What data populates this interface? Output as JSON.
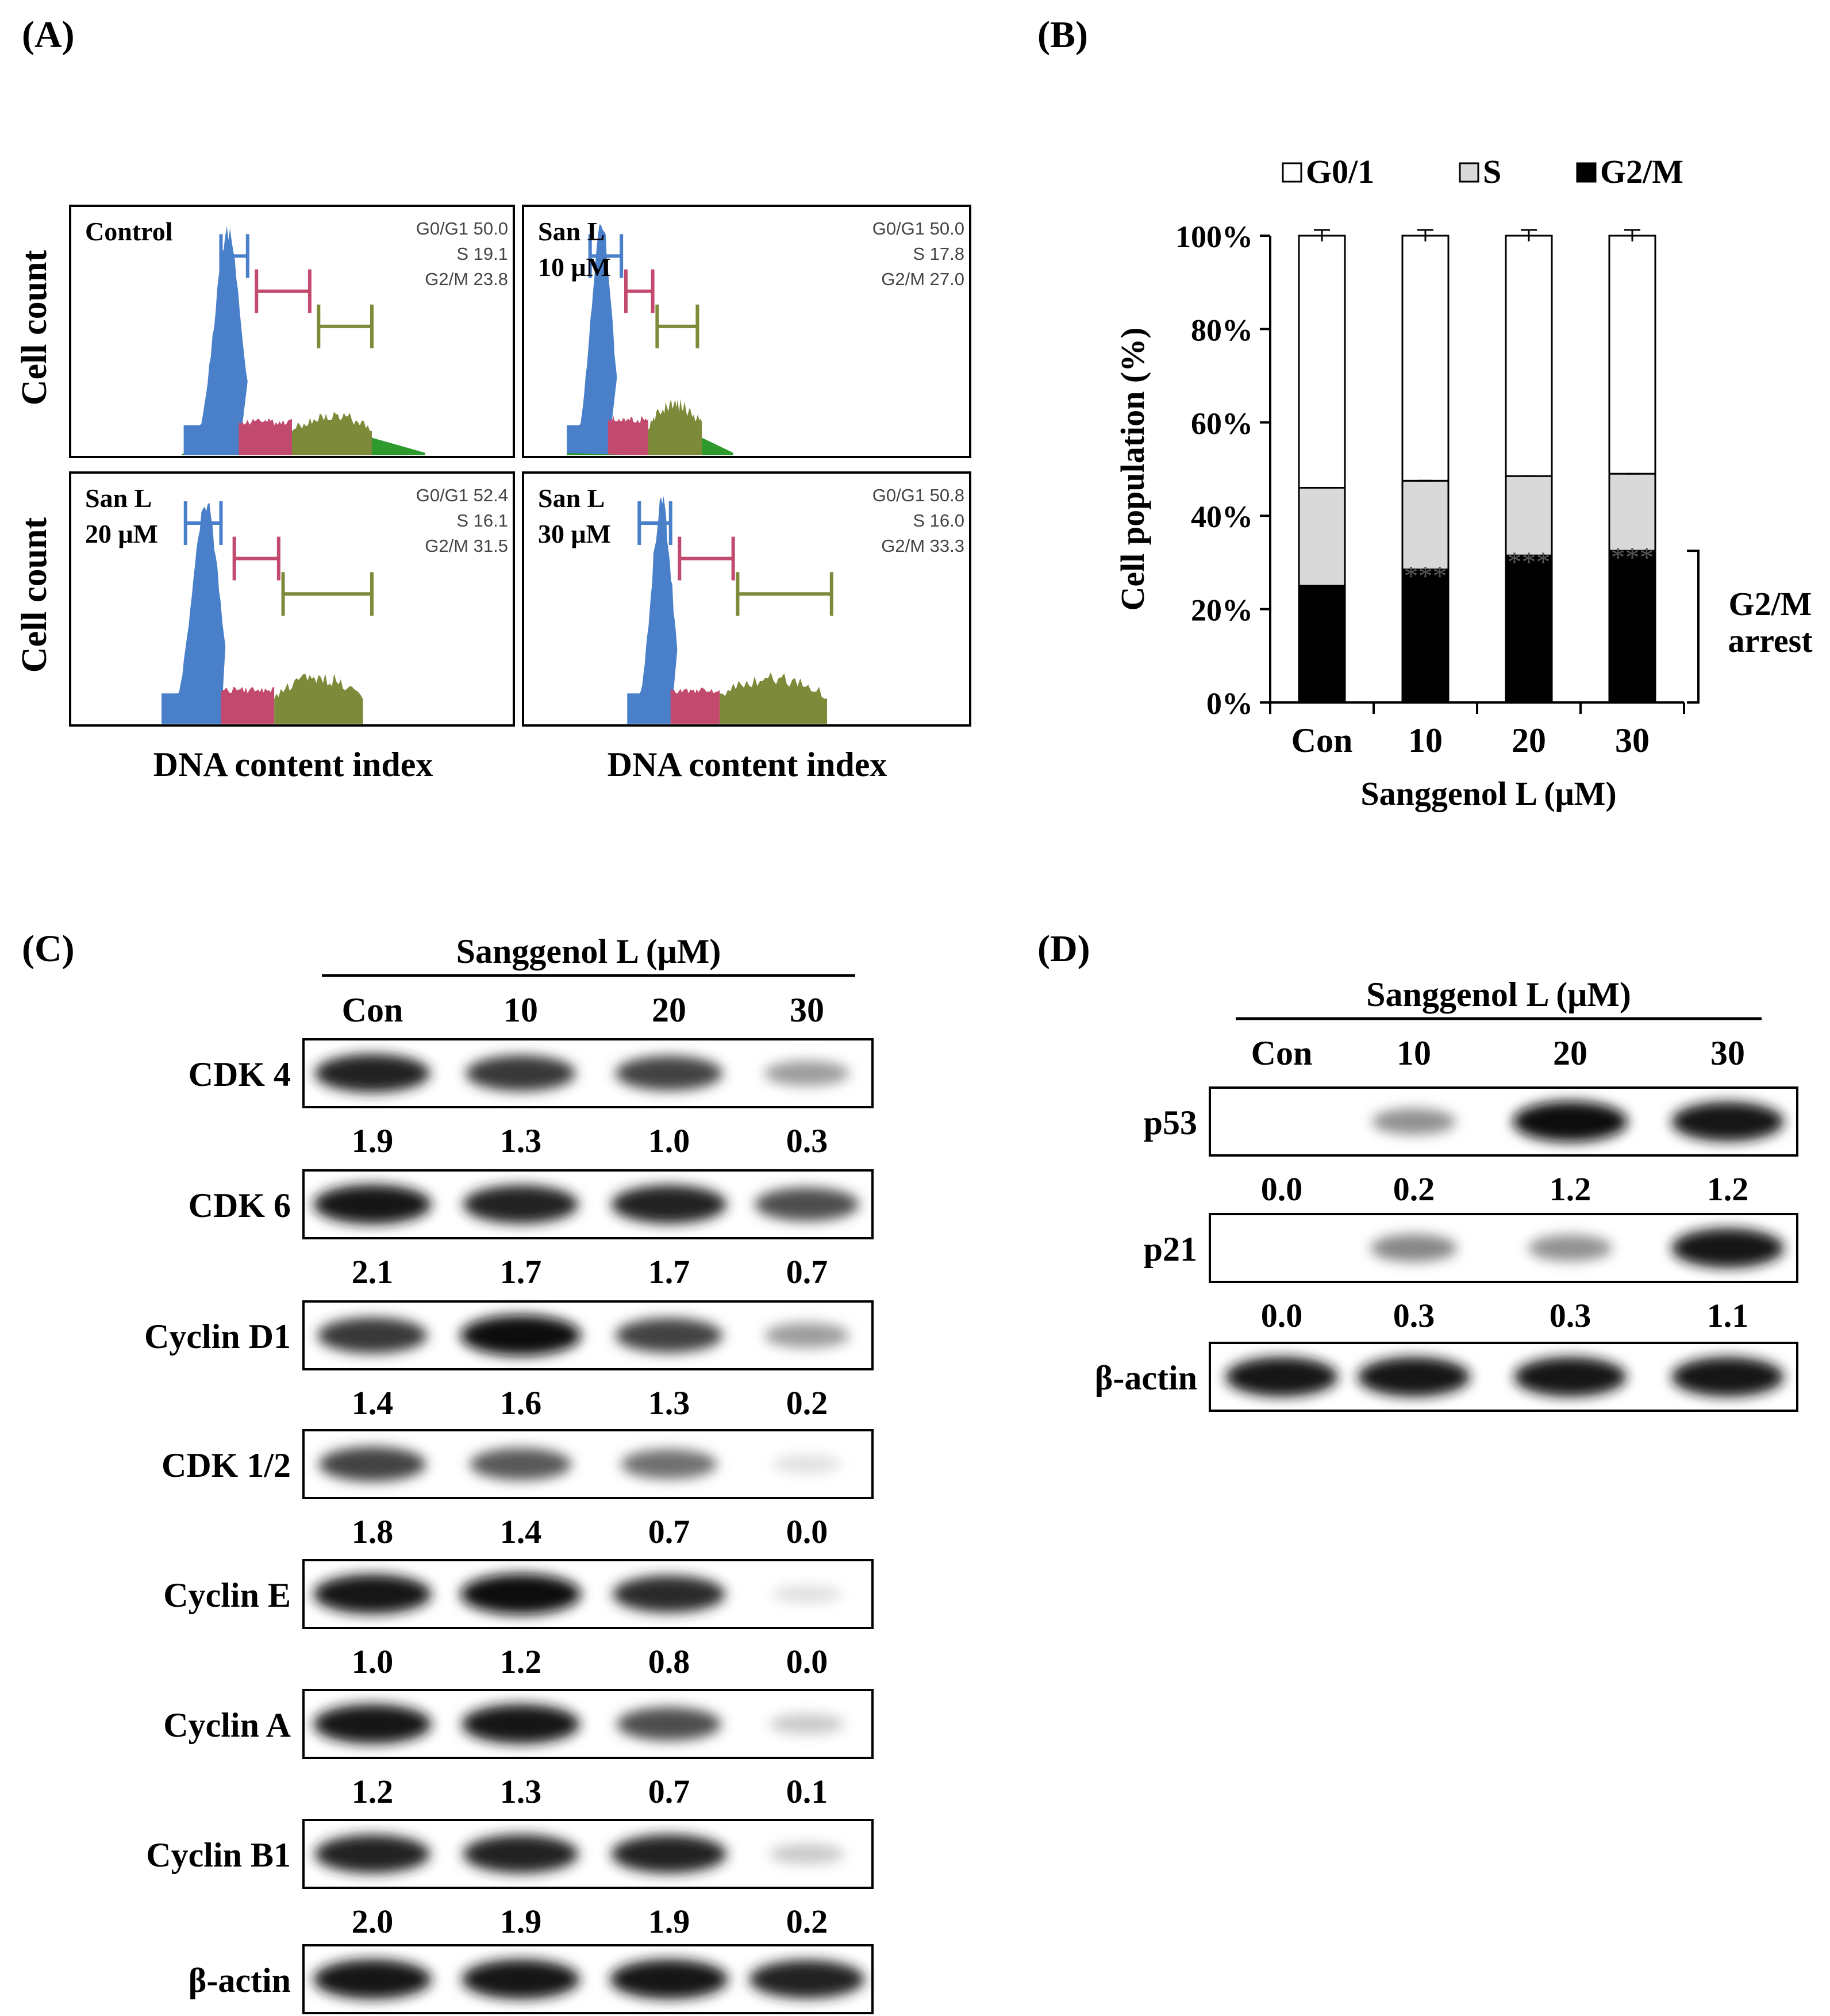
{
  "panel_labels": {
    "a": "(A)",
    "b": "(B)",
    "c": "(C)",
    "d": "(D)"
  },
  "colors": {
    "g1": "#4a7fca",
    "s": "#c24a6e",
    "g2m": "#7d8a3a",
    "tail": "#2e9a2e",
    "stack_s": "#d9d9d9",
    "stack_g2m": "#000000"
  },
  "histograms": {
    "y_label": "Cell count",
    "x_label": "DNA content index",
    "panels": [
      {
        "name": "control",
        "title": [
          "Control"
        ],
        "stats": [
          "G0/G1 50.0",
          "S 19.1",
          "G2/M 23.8"
        ]
      },
      {
        "name": "san-l-10",
        "title": [
          "San L",
          "10 μM"
        ],
        "stats": [
          "G0/G1 50.0",
          "S 17.8",
          "G2/M 27.0"
        ]
      },
      {
        "name": "san-l-20",
        "title": [
          "San L",
          "20 μM"
        ],
        "stats": [
          "G0/G1 52.4",
          "S 16.1",
          "G2/M 31.5"
        ]
      },
      {
        "name": "san-l-30",
        "title": [
          "San L",
          "30 μM"
        ],
        "stats": [
          "G0/G1 50.8",
          "S 16.0",
          "G2/M 33.3"
        ]
      }
    ]
  },
  "chart_data": {
    "type": "bar",
    "stacked": true,
    "categories": [
      "Con",
      "10",
      "20",
      "30"
    ],
    "series": [
      {
        "name": "G2/M",
        "values": [
          25,
          28.5,
          31.5,
          32.5
        ]
      },
      {
        "name": "S",
        "values": [
          21,
          19,
          17,
          16.5
        ]
      },
      {
        "name": "G0/1",
        "values": [
          54,
          52.5,
          51.5,
          51
        ]
      }
    ],
    "legend": [
      "G0/1",
      "S",
      "G2/M"
    ],
    "ylabel": "Cell population (%)",
    "xlabel": "Sanggenol L (μM)",
    "yticks": [
      "0%",
      "20%",
      "40%",
      "60%",
      "80%",
      "100%"
    ],
    "ylim": [
      0,
      100
    ],
    "significance": [
      "",
      "***",
      "***",
      "***"
    ],
    "annotation": [
      "G2/M",
      "arrest"
    ]
  },
  "western_c": {
    "treatment": "Sanggenol L (μM)",
    "lanes": [
      "Con",
      "10",
      "20",
      "30"
    ],
    "rows": [
      {
        "name": "CDK 4",
        "values": [
          "1.9",
          "1.3",
          "1.0",
          "0.3"
        ],
        "intensity": [
          0.9,
          0.8,
          0.75,
          0.35
        ]
      },
      {
        "name": "CDK 6",
        "values": [
          "2.1",
          "1.7",
          "1.7",
          "0.7"
        ],
        "intensity": [
          0.95,
          0.9,
          0.9,
          0.7
        ]
      },
      {
        "name": "Cyclin D1",
        "values": [
          "1.4",
          "1.6",
          "1.3",
          "0.2"
        ],
        "intensity": [
          0.8,
          1.0,
          0.75,
          0.35
        ]
      },
      {
        "name": "CDK 1/2",
        "values": [
          "1.8",
          "1.4",
          "0.7",
          "0.0"
        ],
        "intensity": [
          0.75,
          0.65,
          0.55,
          0.05
        ]
      },
      {
        "name": "Cyclin E",
        "values": [
          "1.0",
          "1.2",
          "0.8",
          "0.0"
        ],
        "intensity": [
          0.95,
          1.0,
          0.85,
          0.05
        ]
      },
      {
        "name": "Cyclin A",
        "values": [
          "1.2",
          "1.3",
          "0.7",
          "0.1"
        ],
        "intensity": [
          0.95,
          0.95,
          0.7,
          0.15
        ]
      },
      {
        "name": "Cyclin B1",
        "values": [
          "2.0",
          "1.9",
          "1.9",
          "0.2"
        ],
        "intensity": [
          0.9,
          0.9,
          0.9,
          0.15
        ]
      },
      {
        "name": "β-actin",
        "values": [],
        "intensity": [
          0.95,
          0.95,
          0.95,
          0.9
        ]
      }
    ]
  },
  "western_d": {
    "treatment": "Sanggenol L (μM)",
    "lanes": [
      "Con",
      "10",
      "20",
      "30"
    ],
    "rows": [
      {
        "name": "p53",
        "values": [
          "0.0",
          "0.2",
          "1.2",
          "1.2"
        ],
        "intensity": [
          0.0,
          0.4,
          1.0,
          0.95
        ]
      },
      {
        "name": "p21",
        "values": [
          "0.0",
          "0.3",
          "0.3",
          "1.1"
        ],
        "intensity": [
          0.0,
          0.45,
          0.4,
          0.95
        ]
      },
      {
        "name": "β-actin",
        "values": [],
        "intensity": [
          0.95,
          0.95,
          0.95,
          0.95
        ]
      }
    ]
  }
}
